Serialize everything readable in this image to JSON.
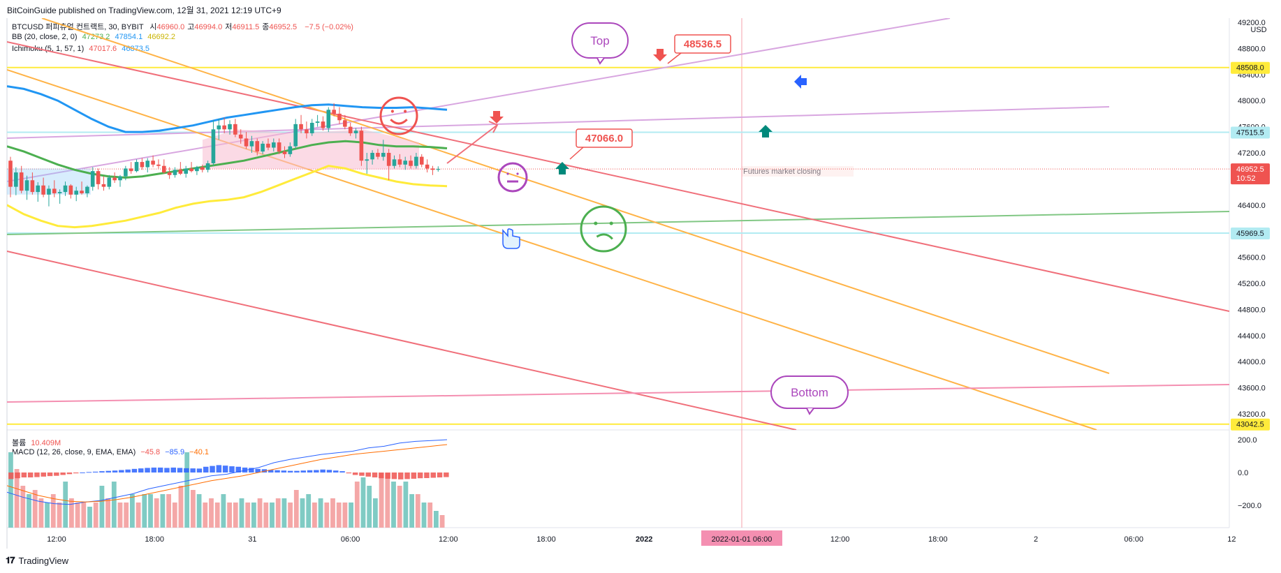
{
  "header": {
    "text": "BitCoinGuide published on TradingView.com, 12월 31, 2021 12:19 UTC+9"
  },
  "footer": {
    "brand": "TradingView"
  },
  "legend": {
    "symbol": "BTCUSD 퍼피츄얼 컨트랙트, 30, BYBIT",
    "ohlc": [
      {
        "k": "시",
        "v": "46960.0"
      },
      {
        "k": "고",
        "v": "46994.0"
      },
      {
        "k": "저",
        "v": "46911.5"
      },
      {
        "k": "종",
        "v": "46952.5"
      }
    ],
    "change": "−7.5 (−0.02%)",
    "bb_label": "BB (20, close, 2, 0)",
    "bb_values": [
      "47273.2",
      "47854.1",
      "46692.2"
    ],
    "ichimoku_label": "Ichimoku (5, 1, 57, 1)",
    "ichimoku_values": [
      "47017.6",
      "46873.5"
    ],
    "volume_label": "볼륨",
    "volume_value": "10.409M",
    "macd_label": "MACD (12, 26, close, 9, EMA, EMA)",
    "macd_values": [
      "−45.8",
      "−85.9",
      "−40.1"
    ]
  },
  "colors": {
    "up": "#26a69a",
    "down": "#ef5350",
    "bb_basis": "#4caf50",
    "bb_upper": "#2196f3",
    "bb_lower": "#ffeb3b",
    "hline_yellow": "#ffeb3b",
    "hline_cyan": "#b2ebf2",
    "trend_red": "#f06f7a",
    "trend_orange": "#ffb347",
    "trend_purple": "#d8a6e0",
    "trend_green": "#81c784",
    "trend_pink": "#f48fb1",
    "macd_blue": "#2962ff",
    "macd_orange": "#ff6d00"
  },
  "price_axis": {
    "unit": "USD",
    "ticks": [
      "49200.0",
      "48800.0",
      "48400.0",
      "48000.0",
      "47600.0",
      "47200.0",
      "46800.0",
      "46400.0",
      "46000.0",
      "45600.0",
      "45200.0",
      "44800.0",
      "44400.0",
      "44000.0",
      "43600.0",
      "43200.0"
    ],
    "tick_values": [
      49200,
      48800,
      48400,
      48000,
      47600,
      47200,
      46800,
      46400,
      46000,
      45600,
      45200,
      44800,
      44400,
      44000,
      43600,
      43200
    ],
    "labels": [
      {
        "value": 48508.0,
        "text": "48508.0",
        "kind": "yellow"
      },
      {
        "value": 47515.5,
        "text": "47515.5",
        "kind": "cyan"
      },
      {
        "value": 46952.5,
        "text": "46952.5",
        "sub": "10:52",
        "kind": "red"
      },
      {
        "value": 45969.5,
        "text": "45969.5",
        "kind": "cyan"
      },
      {
        "value": 43042.5,
        "text": "43042.5",
        "kind": "yellow"
      }
    ]
  },
  "macd_axis": {
    "ticks": [
      "200.0",
      "0.0",
      "−200.0"
    ],
    "tick_values": [
      200,
      0,
      -200
    ]
  },
  "time_axis": {
    "labels": [
      "12:00",
      "18:00",
      "31",
      "06:00",
      "12:00",
      "18:00",
      "2022",
      "",
      "12:00",
      "18:00",
      "2",
      "06:00",
      "12"
    ],
    "bold": [
      false,
      false,
      false,
      false,
      false,
      false,
      true,
      false,
      false,
      false,
      false,
      false,
      false
    ],
    "highlight": "2022-01-01  06:00"
  },
  "annotations": {
    "callout_top": "Top",
    "callout_bottom": "Bottom",
    "price_note_1": "48536.5",
    "price_note_2": "47066.0",
    "futures_note": "Futures market closing"
  },
  "chart_data": {
    "type": "candlestick",
    "ylim": [
      42600,
      49300
    ],
    "candles": [
      [
        47080,
        47140,
        46520,
        46680
      ],
      [
        46680,
        46980,
        46550,
        46900
      ],
      [
        46900,
        47000,
        46580,
        46620
      ],
      [
        46620,
        46850,
        46480,
        46780
      ],
      [
        46780,
        46900,
        46560,
        46600
      ],
      [
        46600,
        46750,
        46450,
        46700
      ],
      [
        46700,
        46820,
        46520,
        46560
      ],
      [
        46560,
        46700,
        46380,
        46650
      ],
      [
        46650,
        46780,
        46520,
        46580
      ],
      [
        46580,
        46640,
        46420,
        46600
      ],
      [
        46600,
        46760,
        46540,
        46700
      ],
      [
        46700,
        46720,
        46500,
        46560
      ],
      [
        46560,
        46680,
        46460,
        46620
      ],
      [
        46620,
        46760,
        46560,
        46580
      ],
      [
        46580,
        46700,
        46520,
        46680
      ],
      [
        46680,
        46980,
        46620,
        46920
      ],
      [
        46920,
        46960,
        46640,
        46720
      ],
      [
        46720,
        46840,
        46620,
        46680
      ],
      [
        46680,
        46860,
        46640,
        46820
      ],
      [
        46820,
        46900,
        46740,
        46780
      ],
      [
        46780,
        46860,
        46680,
        46840
      ],
      [
        46840,
        47000,
        46780,
        46960
      ],
      [
        46960,
        47060,
        46880,
        46920
      ],
      [
        46920,
        47100,
        46900,
        47060
      ],
      [
        47060,
        47120,
        46940,
        46980
      ],
      [
        46980,
        47120,
        46900,
        47080
      ],
      [
        47080,
        47160,
        46980,
        47020
      ],
      [
        47020,
        47100,
        46960,
        47000
      ],
      [
        47000,
        47100,
        46880,
        46900
      ],
      [
        46900,
        46980,
        46800,
        46860
      ],
      [
        46860,
        46980,
        46820,
        46940
      ],
      [
        46940,
        47060,
        46860,
        46880
      ],
      [
        46880,
        47000,
        46820,
        46960
      ],
      [
        46960,
        47060,
        46900,
        46920
      ],
      [
        46920,
        47000,
        46860,
        46980
      ],
      [
        46980,
        47020,
        46900,
        46940
      ],
      [
        46940,
        47080,
        46900,
        47040
      ],
      [
        47040,
        47700,
        47000,
        47560
      ],
      [
        47560,
        47720,
        47400,
        47620
      ],
      [
        47620,
        47740,
        47500,
        47560
      ],
      [
        47560,
        47700,
        47480,
        47640
      ],
      [
        47640,
        47720,
        47440,
        47480
      ],
      [
        47480,
        47560,
        47340,
        47420
      ],
      [
        47420,
        47520,
        47260,
        47300
      ],
      [
        47300,
        47460,
        47200,
        47380
      ],
      [
        47380,
        47420,
        47160,
        47220
      ],
      [
        47220,
        47380,
        47180,
        47340
      ],
      [
        47340,
        47420,
        47240,
        47280
      ],
      [
        47280,
        47420,
        47220,
        47360
      ],
      [
        47360,
        47420,
        47180,
        47220
      ],
      [
        47220,
        47300,
        47120,
        47180
      ],
      [
        47180,
        47360,
        47140,
        47300
      ],
      [
        47300,
        47720,
        47260,
        47640
      ],
      [
        47640,
        47780,
        47500,
        47560
      ],
      [
        47560,
        47680,
        47420,
        47500
      ],
      [
        47500,
        47720,
        47460,
        47660
      ],
      [
        47660,
        47780,
        47600,
        47680
      ],
      [
        47680,
        47760,
        47540,
        47580
      ],
      [
        47580,
        47900,
        47520,
        47860
      ],
      [
        47860,
        47960,
        47760,
        47800
      ],
      [
        47800,
        47900,
        47640,
        47700
      ],
      [
        47700,
        47780,
        47560,
        47600
      ],
      [
        47600,
        47660,
        47460,
        47500
      ],
      [
        47500,
        47580,
        47420,
        47540
      ],
      [
        47540,
        47600,
        47000,
        47080
      ],
      [
        47080,
        47200,
        46880,
        47100
      ],
      [
        47100,
        47240,
        47020,
        47200
      ],
      [
        47200,
        47260,
        47100,
        47140
      ],
      [
        47140,
        47400,
        47080,
        47200
      ],
      [
        47200,
        47260,
        46780,
        47000
      ],
      [
        47000,
        47160,
        46960,
        47100
      ],
      [
        47100,
        47180,
        46980,
        47020
      ],
      [
        47020,
        47140,
        46940,
        47080
      ],
      [
        47080,
        47160,
        46960,
        47000
      ],
      [
        47000,
        47200,
        46960,
        47140
      ],
      [
        47140,
        47180,
        46980,
        47020
      ],
      [
        47020,
        47100,
        46900,
        46960
      ],
      [
        46960,
        47000,
        46860,
        46940
      ],
      [
        46940,
        46994,
        46911.5,
        46952.5
      ]
    ],
    "bb_upper": [
      48220,
      48180,
      48100,
      48000,
      47860,
      47720,
      47600,
      47520,
      47520,
      47540,
      47580,
      47620,
      47680,
      47740,
      47780,
      47820,
      47860,
      47900,
      47930,
      47940,
      47920,
      47900,
      47890,
      47890,
      47900,
      47880,
      47860
    ],
    "bb_basis": [
      47300,
      47220,
      47120,
      47020,
      46940,
      46880,
      46840,
      46820,
      46840,
      46880,
      46920,
      46960,
      47000,
      47040,
      47080,
      47140,
      47200,
      47260,
      47320,
      47360,
      47380,
      47360,
      47320,
      47300,
      47300,
      47290,
      47270
    ],
    "bb_lower": [
      46400,
      46260,
      46160,
      46080,
      46060,
      46080,
      46120,
      46160,
      46220,
      46280,
      46360,
      46420,
      46460,
      46480,
      46520,
      46600,
      46700,
      46800,
      46900,
      47000,
      46960,
      46880,
      46820,
      46760,
      46720,
      46700,
      46690
    ],
    "volume": [
      [
        0.9,
        1
      ],
      [
        0.7,
        0
      ],
      [
        0.5,
        0
      ],
      [
        0.4,
        1
      ],
      [
        0.45,
        0
      ],
      [
        0.35,
        0
      ],
      [
        0.3,
        1
      ],
      [
        0.4,
        0
      ],
      [
        0.3,
        0
      ],
      [
        0.55,
        1
      ],
      [
        0.35,
        0
      ],
      [
        0.3,
        0
      ],
      [
        0.3,
        0
      ],
      [
        0.25,
        1
      ],
      [
        0.3,
        0
      ],
      [
        0.5,
        1
      ],
      [
        0.35,
        0
      ],
      [
        0.55,
        1
      ],
      [
        0.3,
        0
      ],
      [
        0.3,
        0
      ],
      [
        0.4,
        1
      ],
      [
        0.3,
        0
      ],
      [
        0.4,
        1
      ],
      [
        0.4,
        1
      ],
      [
        0.35,
        0
      ],
      [
        0.4,
        1
      ],
      [
        0.4,
        0
      ],
      [
        0.3,
        0
      ],
      [
        0.5,
        0
      ],
      [
        0.9,
        1
      ],
      [
        0.45,
        0
      ],
      [
        0.4,
        1
      ],
      [
        0.3,
        0
      ],
      [
        0.35,
        0
      ],
      [
        0.3,
        0
      ],
      [
        0.4,
        1
      ],
      [
        0.3,
        0
      ],
      [
        0.3,
        0
      ],
      [
        0.35,
        1
      ],
      [
        0.3,
        0
      ],
      [
        0.3,
        1
      ],
      [
        0.35,
        0
      ],
      [
        0.3,
        0
      ],
      [
        0.3,
        1
      ],
      [
        0.35,
        0
      ],
      [
        0.35,
        1
      ],
      [
        0.3,
        0
      ],
      [
        0.45,
        0
      ],
      [
        0.35,
        1
      ],
      [
        0.4,
        1
      ],
      [
        0.3,
        0
      ],
      [
        0.35,
        1
      ],
      [
        0.3,
        0
      ],
      [
        0.35,
        0
      ],
      [
        0.3,
        0
      ],
      [
        0.3,
        0
      ],
      [
        0.3,
        1
      ],
      [
        0.55,
        0
      ],
      [
        0.6,
        1
      ],
      [
        0.5,
        1
      ],
      [
        0.35,
        1
      ],
      [
        0.65,
        0
      ],
      [
        0.65,
        0
      ],
      [
        0.55,
        1
      ],
      [
        0.5,
        0
      ],
      [
        0.55,
        1
      ],
      [
        0.4,
        1
      ],
      [
        0.4,
        0
      ],
      [
        0.3,
        1
      ],
      [
        0.3,
        0
      ],
      [
        0.2,
        1
      ],
      [
        0.15,
        0
      ]
    ],
    "macd_hist": [
      -40,
      -35,
      -30,
      -30,
      -28,
      -25,
      -22,
      -20,
      -15,
      -10,
      -5,
      0,
      3,
      5,
      8,
      10,
      12,
      15,
      18,
      22,
      25,
      28,
      30,
      30,
      28,
      30,
      28,
      26,
      25,
      24,
      35,
      40,
      45,
      42,
      38,
      35,
      30,
      28,
      22,
      20,
      16,
      14,
      12,
      10,
      10,
      12,
      14,
      15,
      18,
      16,
      12,
      8,
      -5,
      -15,
      -20,
      -25,
      -30,
      -35,
      -38,
      -40,
      -42,
      -40,
      -38,
      -35,
      -34,
      -32,
      -30,
      -28
    ],
    "macd_line": [
      -120,
      -150,
      -175,
      -190,
      -195,
      -180,
      -170,
      -150,
      -130,
      -100,
      -80,
      -60,
      -40,
      -20,
      -10,
      10,
      30,
      60,
      80,
      95,
      110,
      120,
      130,
      150,
      160,
      180,
      190,
      195,
      200
    ],
    "signal_line": [
      -80,
      -110,
      -140,
      -160,
      -175,
      -180,
      -175,
      -165,
      -150,
      -130,
      -110,
      -90,
      -70,
      -50,
      -35,
      -20,
      0,
      20,
      40,
      60,
      80,
      95,
      110,
      120,
      130,
      140,
      150,
      160,
      170
    ]
  }
}
